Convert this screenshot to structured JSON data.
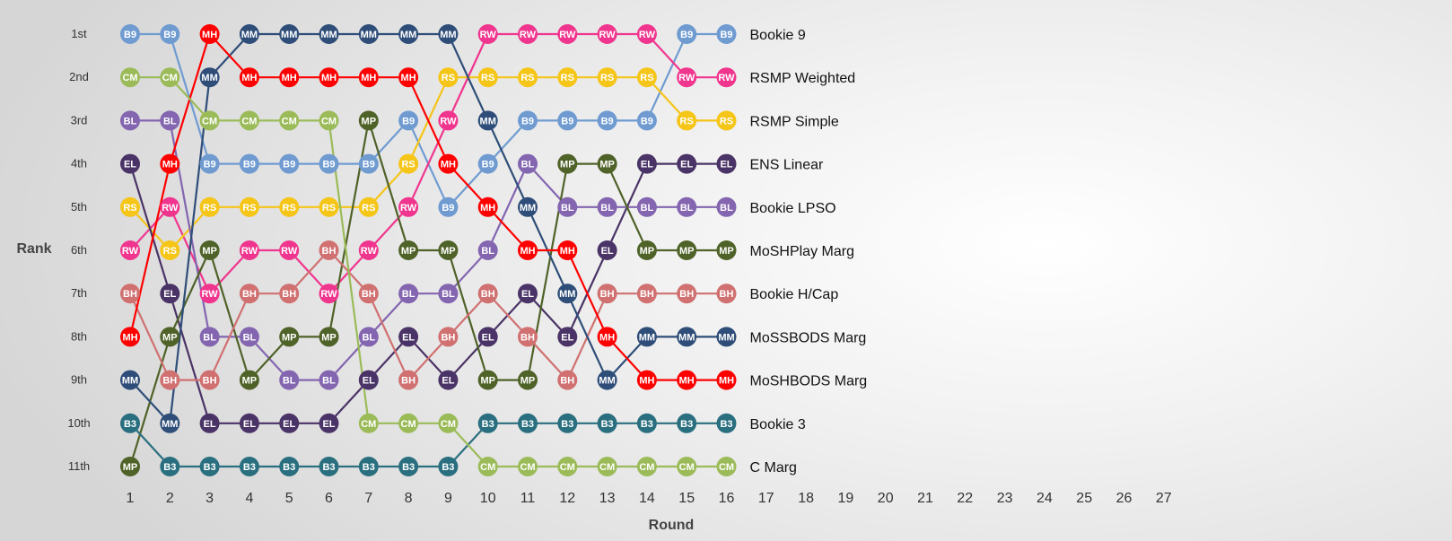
{
  "chart_data": {
    "type": "line",
    "subtype": "bump",
    "xlabel": "Round",
    "ylabel": "Rank",
    "x": [
      1,
      2,
      3,
      4,
      5,
      6,
      7,
      8,
      9,
      10,
      11,
      12,
      13,
      14,
      15,
      16,
      17,
      18,
      19,
      20,
      21,
      22,
      23,
      24,
      25,
      26,
      27
    ],
    "rank_labels": [
      "1st",
      "2nd",
      "3rd",
      "4th",
      "5th",
      "6th",
      "7th",
      "8th",
      "9th",
      "10th",
      "11th"
    ],
    "ylim": [
      1,
      11
    ],
    "y_inverted": true,
    "grid": false,
    "legend": "right-end-labels",
    "series": [
      {
        "name": "Bookie 9",
        "abbr": "B9",
        "color": "#6f9bd1",
        "ranks": [
          1,
          1,
          4,
          4,
          4,
          4,
          4,
          3,
          5,
          4,
          3,
          3,
          3,
          3,
          1,
          1
        ]
      },
      {
        "name": "RSMP Weighted",
        "abbr": "RW",
        "color": "#f0358e",
        "ranks": [
          6,
          5,
          7,
          6,
          6,
          7,
          6,
          5,
          3,
          1,
          1,
          1,
          1,
          1,
          2,
          2
        ]
      },
      {
        "name": "RSMP Simple",
        "abbr": "RS",
        "color": "#f5c518",
        "ranks": [
          5,
          6,
          5,
          5,
          5,
          5,
          5,
          4,
          2,
          2,
          2,
          2,
          2,
          2,
          3,
          3
        ]
      },
      {
        "name": "ENS Linear",
        "abbr": "EL",
        "color": "#4a3366",
        "ranks": [
          4,
          7,
          10,
          10,
          10,
          10,
          9,
          8,
          9,
          8,
          7,
          8,
          6,
          4,
          4,
          4
        ]
      },
      {
        "name": "Bookie LPSO",
        "abbr": "BL",
        "color": "#8365b0",
        "ranks": [
          3,
          3,
          8,
          8,
          9,
          9,
          8,
          7,
          7,
          6,
          4,
          5,
          5,
          5,
          5,
          5
        ]
      },
      {
        "name": "MoSHPlay Marg",
        "abbr": "MP",
        "color": "#4f6228",
        "ranks": [
          11,
          8,
          6,
          9,
          8,
          8,
          3,
          6,
          6,
          9,
          9,
          4,
          4,
          6,
          6,
          6
        ]
      },
      {
        "name": "Bookie H/Cap",
        "abbr": "BH",
        "color": "#d07070",
        "ranks": [
          7,
          9,
          9,
          7,
          7,
          6,
          7,
          9,
          8,
          7,
          8,
          9,
          7,
          7,
          7,
          7
        ]
      },
      {
        "name": "MoSSBODS Marg",
        "abbr": "MM",
        "color": "#2e4d78",
        "ranks": [
          9,
          10,
          2,
          1,
          1,
          1,
          1,
          1,
          1,
          3,
          5,
          7,
          9,
          8,
          8,
          8
        ]
      },
      {
        "name": "MoSHBODS Marg",
        "abbr": "MH",
        "color": "#ff0000",
        "ranks": [
          8,
          4,
          1,
          2,
          2,
          2,
          2,
          2,
          4,
          5,
          6,
          6,
          8,
          9,
          9,
          9
        ]
      },
      {
        "name": "Bookie 3",
        "abbr": "B3",
        "color": "#2a6f7f",
        "ranks": [
          10,
          11,
          11,
          11,
          11,
          11,
          11,
          11,
          11,
          10,
          10,
          10,
          10,
          10,
          10,
          10
        ]
      },
      {
        "name": "C Marg",
        "abbr": "CM",
        "color": "#9bbb59",
        "ranks": [
          2,
          2,
          3,
          3,
          3,
          3,
          10,
          10,
          10,
          11,
          11,
          11,
          11,
          11,
          11,
          11
        ]
      }
    ]
  }
}
